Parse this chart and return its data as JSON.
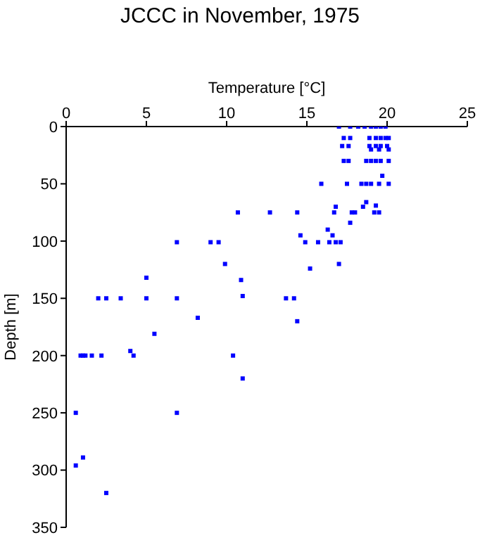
{
  "chart_data": {
    "type": "scatter",
    "title": "JCCC in November, 1975",
    "xlabel": "Temperature [°C]",
    "ylabel": "Depth [m]",
    "xlim": [
      0,
      25
    ],
    "xticks": [
      0,
      5,
      10,
      15,
      20,
      25
    ],
    "ylim": [
      350,
      0
    ],
    "yticks": [
      0,
      50,
      100,
      150,
      200,
      250,
      300,
      350
    ],
    "grid": false,
    "marker": "square",
    "series": [
      {
        "color": "#0000ff",
        "x": [
          17.0,
          17.7,
          18.2,
          18.6,
          19.0,
          19.3,
          19.6,
          19.9,
          17.3,
          17.7,
          18.9,
          19.3,
          19.6,
          19.9,
          20.1,
          17.2,
          17.6,
          18.9,
          19.3,
          19.6,
          20.0,
          19.0,
          19.5,
          20.1,
          17.3,
          17.6,
          18.7,
          19.0,
          19.3,
          19.6,
          20.1,
          19.7,
          15.9,
          17.5,
          18.4,
          18.7,
          19.0,
          19.5,
          20.1,
          18.7,
          19.3,
          16.8,
          18.5,
          10.7,
          12.7,
          14.4,
          16.7,
          17.8,
          18.0,
          19.2,
          19.5,
          17.7,
          16.3,
          14.6,
          16.6,
          6.9,
          9.0,
          9.5,
          14.9,
          15.7,
          16.4,
          16.8,
          17.1,
          9.9,
          17.0,
          15.2,
          5.0,
          10.9,
          11.0,
          2.0,
          2.5,
          3.4,
          5.0,
          6.9,
          13.7,
          14.2,
          8.2,
          14.4,
          5.5,
          4.0,
          0.9,
          1.05,
          1.2,
          1.6,
          2.2,
          4.2,
          10.4,
          11.0,
          0.6,
          6.9,
          1.05,
          0.6,
          2.5
        ],
        "values": [
          0,
          0,
          0,
          0,
          0,
          0,
          0,
          0,
          10,
          10,
          10,
          10,
          10,
          10,
          10,
          17,
          17,
          17,
          17,
          17,
          17,
          20,
          20,
          20,
          30,
          30,
          30,
          30,
          30,
          30,
          30,
          43,
          50,
          50,
          50,
          50,
          50,
          50,
          50,
          66,
          69,
          70,
          70,
          75,
          75,
          75,
          75,
          75,
          75,
          75,
          75,
          84,
          90,
          95,
          95,
          101,
          101,
          101,
          101,
          101,
          101,
          101,
          101,
          120,
          120,
          124,
          132,
          134,
          148,
          150,
          150,
          150,
          150,
          150,
          150,
          150,
          167,
          170,
          181,
          196,
          200,
          200,
          200,
          200,
          200,
          200,
          200,
          220,
          250,
          250,
          289,
          296,
          320
        ]
      }
    ]
  }
}
